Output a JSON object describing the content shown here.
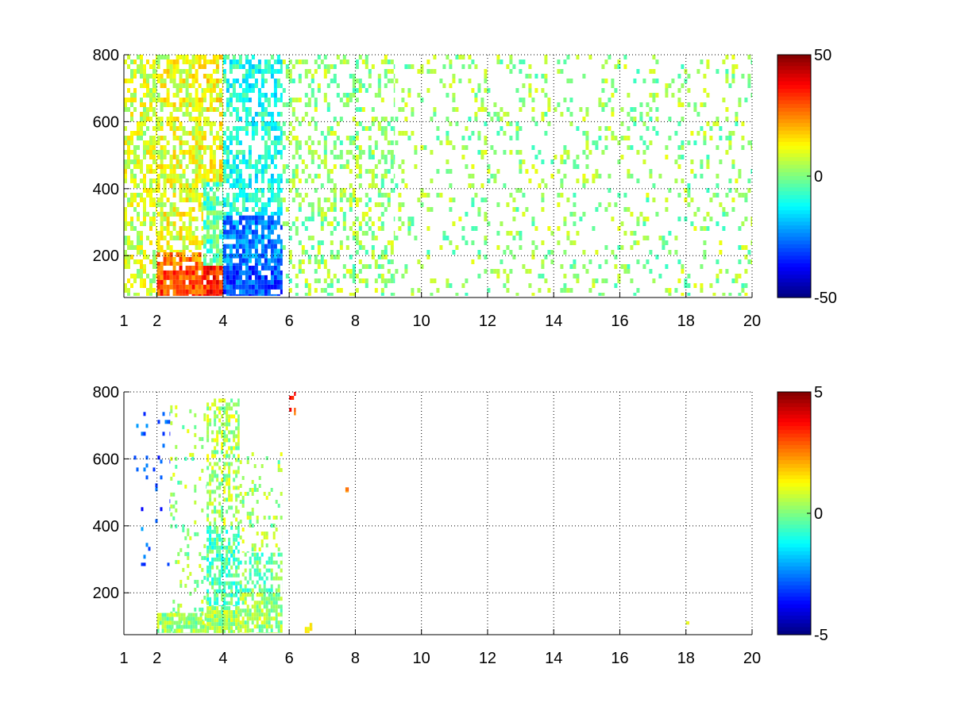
{
  "chart_data": [
    {
      "type": "heatmap",
      "title": "",
      "xlabel": "",
      "ylabel": "",
      "xlim": [
        1,
        20
      ],
      "ylim": [
        75,
        800
      ],
      "x_ticks": [
        1,
        2,
        4,
        6,
        8,
        10,
        12,
        14,
        16,
        18,
        20
      ],
      "x_tick_labels": [
        "1",
        "2",
        "4",
        "6",
        "8",
        "10",
        "12",
        "14",
        "16",
        "18",
        "20"
      ],
      "y_ticks": [
        200,
        400,
        600,
        800
      ],
      "y_tick_labels": [
        "200",
        "400",
        "600",
        "800"
      ],
      "grid": true,
      "colormap": "jet",
      "clim": [
        -50,
        50
      ],
      "colorbar_ticks": [
        50,
        0,
        -50
      ],
      "colorbar_tick_labels": [
        "50",
        "0",
        "-50"
      ],
      "regions": [
        {
          "x": [
            1.0,
            2.0
          ],
          "y": [
            80,
            800
          ],
          "value": 8,
          "density": 0.55
        },
        {
          "x": [
            2.0,
            3.4
          ],
          "y": [
            80,
            170
          ],
          "value": 30,
          "density": 0.9
        },
        {
          "x": [
            2.0,
            3.4
          ],
          "y": [
            170,
            210
          ],
          "value": 25,
          "density": 0.8
        },
        {
          "x": [
            2.0,
            3.4
          ],
          "y": [
            210,
            800
          ],
          "value": 10,
          "density": 0.65
        },
        {
          "x": [
            3.4,
            4.0
          ],
          "y": [
            80,
            170
          ],
          "value": 35,
          "density": 0.95
        },
        {
          "x": [
            3.4,
            4.0
          ],
          "y": [
            170,
            420
          ],
          "value": -5,
          "density": 0.8
        },
        {
          "x": [
            3.4,
            4.0
          ],
          "y": [
            420,
            800
          ],
          "value": 12,
          "density": 0.7
        },
        {
          "x": [
            4.0,
            5.8
          ],
          "y": [
            80,
            170
          ],
          "value": -30,
          "density": 0.9
        },
        {
          "x": [
            4.0,
            5.8
          ],
          "y": [
            170,
            320
          ],
          "value": -25,
          "density": 0.8
        },
        {
          "x": [
            4.0,
            5.8
          ],
          "y": [
            320,
            800
          ],
          "value": -10,
          "density": 0.55
        },
        {
          "x": [
            5.8,
            9.2
          ],
          "y": [
            80,
            800
          ],
          "value": 2,
          "density": 0.3
        },
        {
          "x": [
            9.2,
            20.0
          ],
          "y": [
            80,
            800
          ],
          "value": 2,
          "density": 0.15
        }
      ]
    },
    {
      "type": "heatmap",
      "title": "",
      "xlabel": "",
      "ylabel": "",
      "xlim": [
        1,
        20
      ],
      "ylim": [
        75,
        800
      ],
      "x_ticks": [
        1,
        2,
        4,
        6,
        8,
        10,
        12,
        14,
        16,
        18,
        20
      ],
      "x_tick_labels": [
        "1",
        "2",
        "4",
        "6",
        "8",
        "10",
        "12",
        "14",
        "16",
        "18",
        "20"
      ],
      "y_ticks": [
        200,
        400,
        600,
        800
      ],
      "y_tick_labels": [
        "200",
        "400",
        "600",
        "800"
      ],
      "grid": true,
      "colormap": "jet",
      "clim": [
        -5,
        5
      ],
      "colorbar_ticks": [
        5,
        0,
        -5
      ],
      "colorbar_tick_labels": [
        "5",
        "0",
        "-5"
      ],
      "regions": [
        {
          "x": [
            1.3,
            2.4
          ],
          "y": [
            280,
            740
          ],
          "value": -3,
          "density": 0.05
        },
        {
          "x": [
            2.4,
            3.5
          ],
          "y": [
            80,
            760
          ],
          "value": 0.2,
          "density": 0.12
        },
        {
          "x": [
            2.0,
            3.5
          ],
          "y": [
            80,
            140
          ],
          "value": 0.3,
          "density": 0.85
        },
        {
          "x": [
            3.5,
            4.5
          ],
          "y": [
            80,
            160
          ],
          "value": 0.3,
          "density": 0.95
        },
        {
          "x": [
            3.5,
            4.5
          ],
          "y": [
            160,
            400
          ],
          "value": -0.5,
          "density": 0.6
        },
        {
          "x": [
            3.5,
            4.5
          ],
          "y": [
            400,
            780
          ],
          "value": 0.4,
          "density": 0.45
        },
        {
          "x": [
            4.5,
            5.8
          ],
          "y": [
            80,
            200
          ],
          "value": 0.3,
          "density": 0.7
        },
        {
          "x": [
            4.5,
            5.8
          ],
          "y": [
            200,
            320
          ],
          "value": -0.2,
          "density": 0.45
        },
        {
          "x": [
            4.5,
            5.8
          ],
          "y": [
            320,
            620
          ],
          "value": 0.3,
          "density": 0.2
        },
        {
          "x": [
            6.0,
            6.2
          ],
          "y": [
            730,
            800
          ],
          "value": 3,
          "density": 0.4
        },
        {
          "x": [
            6.4,
            6.7
          ],
          "y": [
            80,
            110
          ],
          "value": 1,
          "density": 0.4
        },
        {
          "x": [
            7.7,
            7.8
          ],
          "y": [
            500,
            515
          ],
          "value": 3,
          "density": 1.0
        },
        {
          "x": [
            18.0,
            18.1
          ],
          "y": [
            105,
            115
          ],
          "value": 1,
          "density": 1.0
        }
      ]
    }
  ]
}
